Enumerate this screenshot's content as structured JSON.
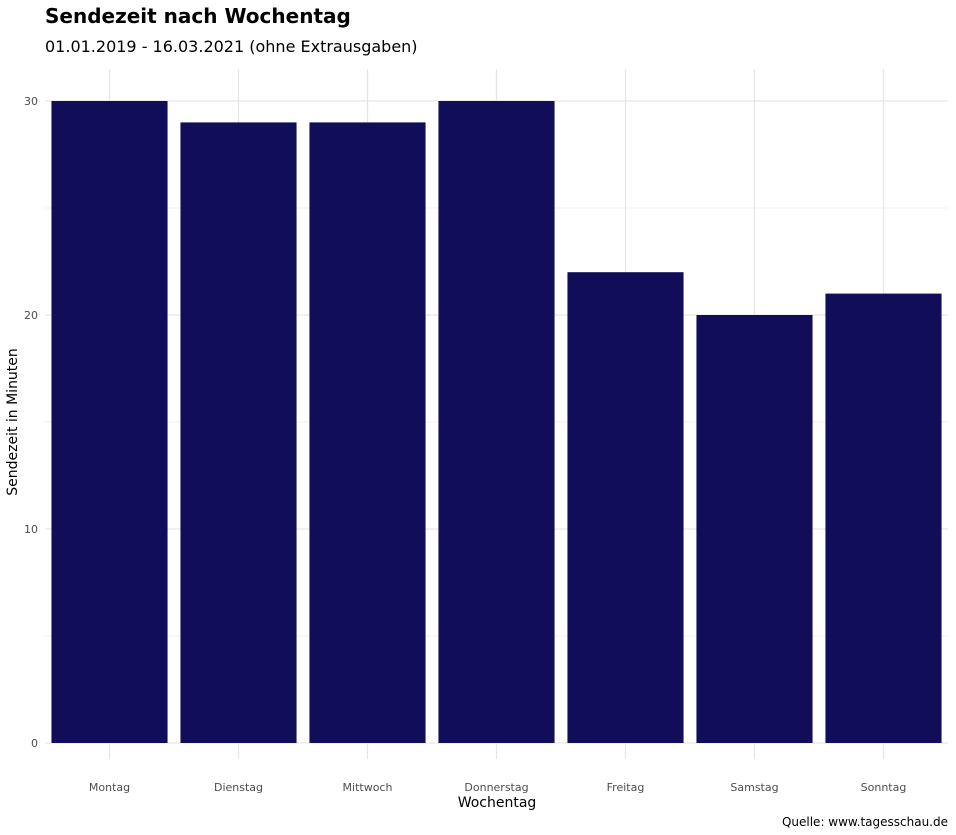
{
  "chart_data": {
    "type": "bar",
    "title": "Sendezeit nach Wochentag",
    "subtitle": "01.01.2019 - 16.03.2021 (ohne Extrausgaben)",
    "xlabel": "Wochentag",
    "ylabel": "Sendezeit in Minuten",
    "caption": "Quelle: www.tagesschau.de",
    "categories": [
      "Montag",
      "Dienstag",
      "Mittwoch",
      "Donnerstag",
      "Freitag",
      "Samstag",
      "Sonntag"
    ],
    "values": [
      30,
      29,
      29,
      30,
      22,
      20,
      21
    ],
    "ylim": [
      0,
      31.5
    ],
    "yticks": [
      0,
      10,
      20,
      30
    ],
    "grid": true,
    "legend": "none",
    "bar_color": "#110d58"
  }
}
